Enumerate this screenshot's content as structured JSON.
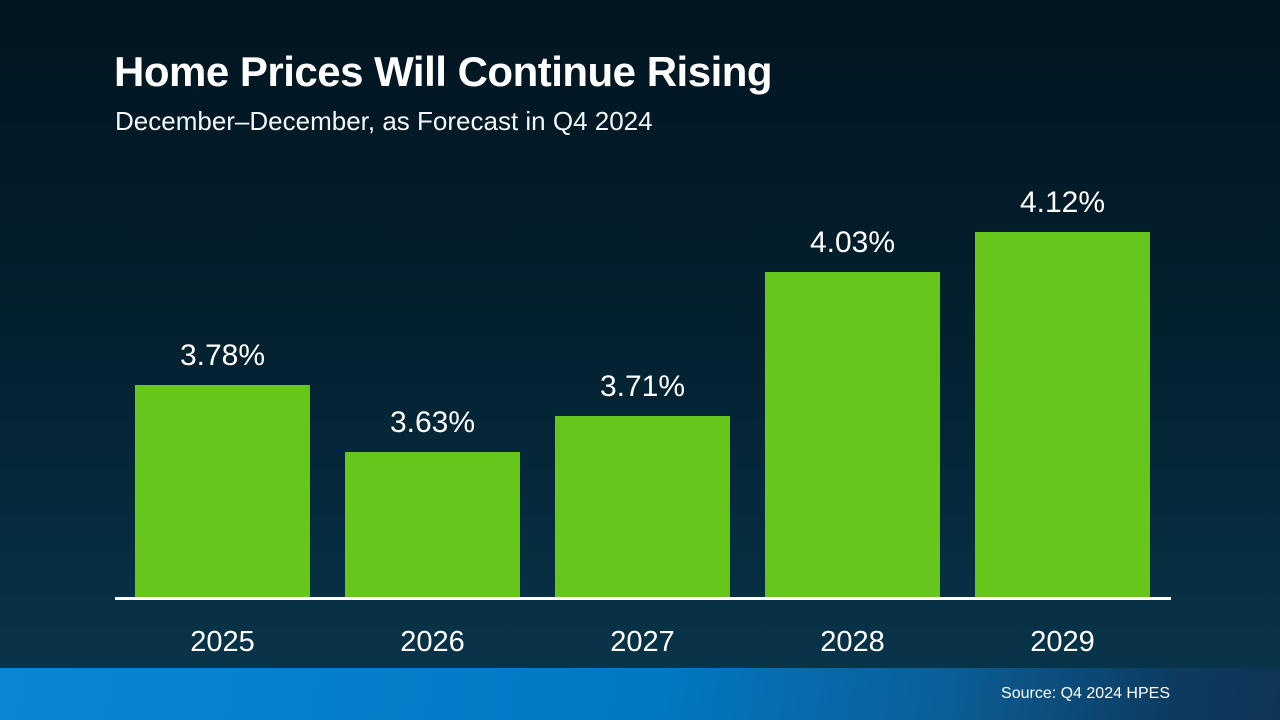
{
  "header": {
    "title": "Home Prices Will Continue Rising",
    "subtitle": "December–December, as Forecast in Q4 2024"
  },
  "chart_data": {
    "type": "bar",
    "categories": [
      "2025",
      "2026",
      "2027",
      "2028",
      "2029"
    ],
    "values": [
      3.78,
      3.63,
      3.71,
      4.03,
      4.12
    ],
    "value_labels": [
      "3.78%",
      "3.63%",
      "3.71%",
      "4.03%",
      "4.12%"
    ],
    "title": "Home Prices Will Continue Rising",
    "subtitle": "December–December, as Forecast in Q4 2024",
    "xlabel": "",
    "ylabel": "",
    "ylim": [
      3.3,
      4.2
    ],
    "grid": false,
    "legend": false,
    "bar_color": "#66c61b",
    "axis_line_color": "#ffffff"
  },
  "colors": {
    "background_top": "#021520",
    "background_bottom": "#09374d",
    "bar_green": "#66c61b",
    "footer_blue_left": "#0a87d2",
    "footer_blue_right": "#0d3a5e",
    "text_white": "#ffffff"
  },
  "footer": {
    "source": "Source: Q4 2024 HPES"
  }
}
